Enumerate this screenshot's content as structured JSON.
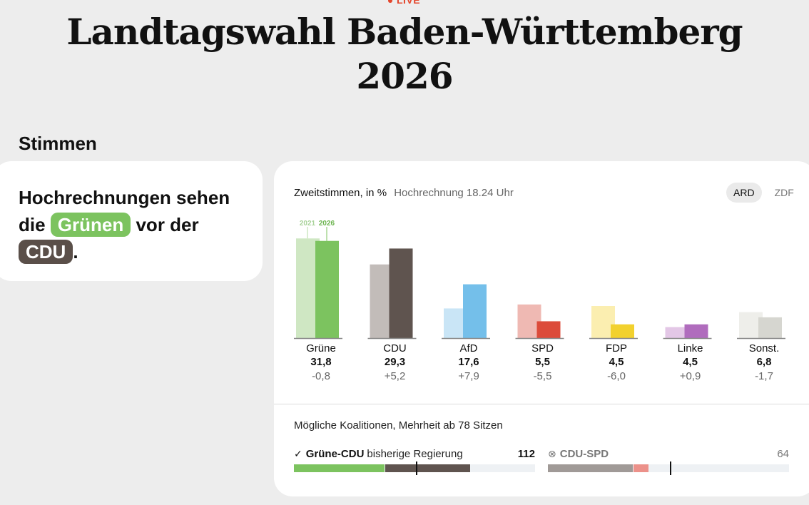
{
  "header": {
    "live_label": "LIVE",
    "title_line1": "Landtagswahl Baden-Württemberg",
    "title_line2": "2026"
  },
  "section": {
    "title": "Stimmen"
  },
  "headline": {
    "part1": "Hochrechnungen sehen die ",
    "party1": "Grünen",
    "part2": " vor der ",
    "party2": "CDU",
    "part3": "."
  },
  "chart_header": {
    "label": "Zweitstimmen, in %",
    "sub": "Hochrechnung 18.24 Uhr"
  },
  "source_toggle": {
    "options": [
      "ARD",
      "ZDF"
    ],
    "selected": "ARD"
  },
  "chart_data": {
    "type": "bar",
    "title": "Zweitstimmen, in %",
    "subtitle": "Hochrechnung 18.24 Uhr",
    "categories": [
      "Grüne",
      "CDU",
      "AfD",
      "SPD",
      "FDP",
      "Linke",
      "Sonst."
    ],
    "series": [
      {
        "name": "2021",
        "values": [
          32.6,
          24.1,
          9.7,
          11.0,
          10.5,
          3.6,
          8.5
        ],
        "colors": [
          "#cfe7c3",
          "#c2bcb9",
          "#c9e5f6",
          "#efb9b3",
          "#fbeeb0",
          "#e3c7e6",
          "#eeeeea"
        ]
      },
      {
        "name": "2026",
        "values": [
          31.8,
          29.3,
          17.6,
          5.5,
          4.5,
          4.5,
          6.8
        ],
        "colors": [
          "#7cc35f",
          "#5f544f",
          "#74bfea",
          "#dc4b3a",
          "#f2d12e",
          "#b06cbd",
          "#d6d6d0"
        ]
      }
    ],
    "value_labels": [
      "31,8",
      "29,3",
      "17,6",
      "5,5",
      "4,5",
      "4,5",
      "6,8"
    ],
    "diff_labels": [
      "-0,8",
      "+5,2",
      "+7,9",
      "-5,5",
      "-6,0",
      "+0,9",
      "-1,7"
    ],
    "legend_year_old": "2021",
    "legend_year_new": "2026",
    "ylim": [
      0,
      35
    ]
  },
  "coalitions": {
    "title": "Mögliche Koalitionen, Mehrheit ab 78 Sitzen",
    "majority": 78,
    "total_seats": 154,
    "items": [
      {
        "icon": "check-circle-icon",
        "icon_glyph": "✓",
        "name": "Grüne-CDU",
        "note": "bisherige Regierung",
        "seats": "112",
        "segments": [
          {
            "party": "Grüne",
            "seats": 58,
            "color": "#7cc35f"
          },
          {
            "party": "CDU",
            "seats": 54,
            "color": "#5f544f"
          }
        ]
      },
      {
        "icon": "x-circle-icon",
        "icon_glyph": "⊗",
        "name": "CDU-SPD",
        "note": "",
        "seats": "64",
        "segments": [
          {
            "party": "CDU",
            "seats": 54,
            "color": "#a09a97"
          },
          {
            "party": "SPD",
            "seats": 10,
            "color": "#ec918a"
          }
        ]
      }
    ]
  }
}
